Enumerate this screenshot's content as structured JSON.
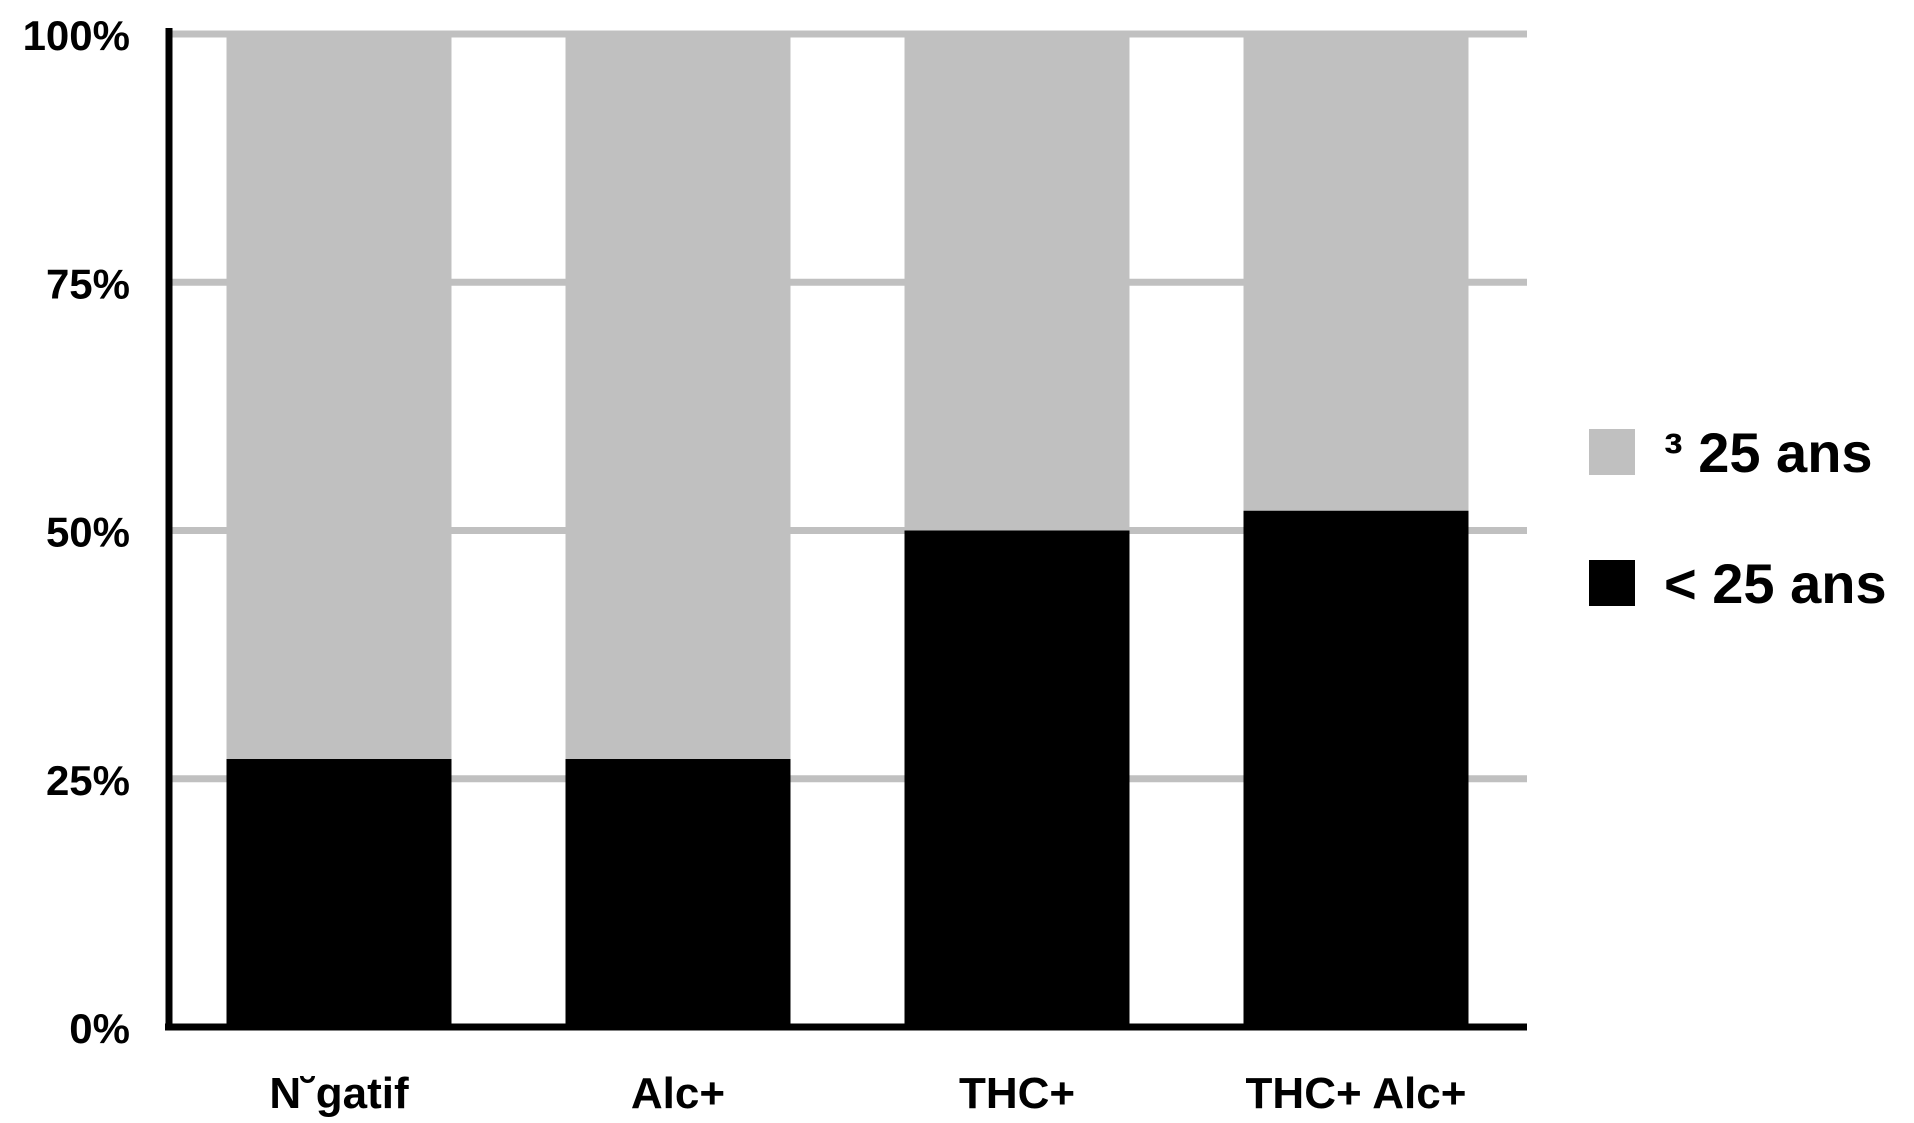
{
  "chart_data": {
    "type": "bar",
    "stacked": true,
    "percent_stacked": true,
    "categories": [
      "N˘gatif",
      "Alc+",
      "THC+",
      "THC+ Alc+"
    ],
    "series": [
      {
        "name": "< 25 ans",
        "values": [
          27,
          27,
          50,
          52
        ],
        "color": "#000000"
      },
      {
        "name": "³ 25 ans",
        "values": [
          73,
          73,
          50,
          48
        ],
        "color": "#c0c0c0"
      }
    ],
    "yticks": [
      "0%",
      "25%",
      "50%",
      "75%",
      "100%"
    ],
    "ylim": [
      0,
      100
    ],
    "grid": true,
    "grid_color": "#c0c0c0",
    "legend_position": "right",
    "legend_order": [
      1,
      0
    ],
    "title": "",
    "xlabel": "",
    "ylabel": ""
  }
}
